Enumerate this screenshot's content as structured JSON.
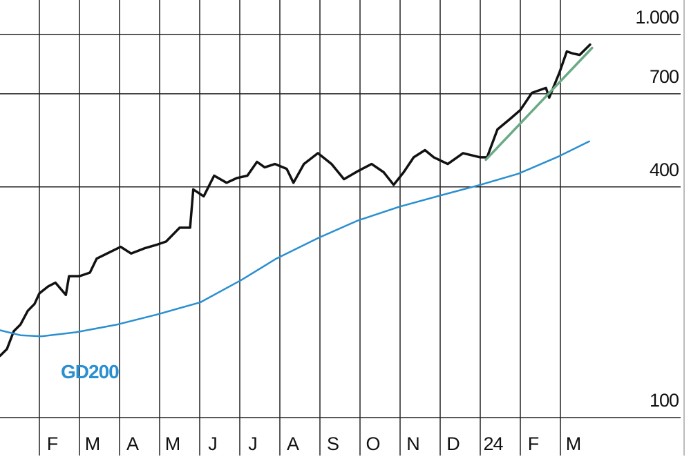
{
  "chart_data": {
    "type": "line",
    "log_scale": true,
    "grid": true,
    "xlim": [
      0,
      17
    ],
    "xticks": [
      {
        "value": 1,
        "label": "F"
      },
      {
        "value": 2,
        "label": "M"
      },
      {
        "value": 3,
        "label": "A"
      },
      {
        "value": 4,
        "label": "M"
      },
      {
        "value": 5,
        "label": "J"
      },
      {
        "value": 6,
        "label": "J"
      },
      {
        "value": 7,
        "label": "A"
      },
      {
        "value": 8,
        "label": "S"
      },
      {
        "value": 9,
        "label": "O"
      },
      {
        "value": 10,
        "label": "N"
      },
      {
        "value": 11,
        "label": "D"
      },
      {
        "value": 12,
        "label": "24"
      },
      {
        "value": 13,
        "label": "F"
      },
      {
        "value": 14,
        "label": "M"
      }
    ],
    "ylim": [
      100,
      1230
    ],
    "yticks": [
      100,
      400,
      700,
      {
        "value": 1000,
        "label": "1.000"
      }
    ],
    "series": [
      {
        "color": "#111111",
        "x": [
          0.02,
          0.19,
          0.36,
          0.53,
          0.71,
          0.88,
          1.0,
          1.22,
          1.4,
          1.66,
          1.74,
          2.0,
          2.26,
          2.43,
          2.78,
          3.03,
          3.29,
          3.64,
          3.9,
          4.16,
          4.5,
          4.76,
          4.84,
          5.1,
          5.36,
          5.67,
          5.93,
          6.19,
          6.43,
          6.62,
          6.88,
          7.17,
          7.34,
          7.6,
          7.95,
          8.29,
          8.6,
          8.95,
          9.29,
          9.59,
          9.84,
          10.09,
          10.34,
          10.62,
          10.84,
          11.19,
          11.57,
          12.0,
          12.17,
          12.43,
          12.76,
          13.0,
          13.29,
          13.64,
          13.72,
          13.98,
          14.16,
          14.31,
          14.48,
          14.74
        ],
        "values": [
          145,
          151,
          168,
          175,
          190,
          198,
          211,
          220,
          225,
          209,
          234,
          234,
          239,
          260,
          271,
          279,
          268,
          277,
          282,
          288,
          313,
          313,
          394,
          378,
          428,
          410,
          422,
          428,
          465,
          450,
          459,
          446,
          410,
          459,
          490,
          459,
          419,
          440,
          459,
          437,
          405,
          437,
          478,
          499,
          478,
          459,
          490,
          478,
          478,
          565,
          604,
          635,
          704,
          725,
          684,
          797,
          903,
          892,
          884,
          941
        ]
      },
      {
        "name": "GD200",
        "color": "#2a8fd0",
        "x": [
          0.02,
          0.53,
          1.05,
          1.91,
          2.95,
          3.95,
          5.02,
          6.05,
          6.91,
          7.95,
          8.95,
          9.98,
          11.05,
          12.0,
          12.95,
          13.95,
          14.72
        ],
        "values": [
          169,
          164,
          163,
          167,
          175,
          186,
          200,
          229,
          260,
          294,
          327,
          355,
          381,
          405,
          433,
          480,
          526
        ]
      },
      {
        "color": "#6aaa84",
        "x": [
          12.14,
          14.79
        ],
        "values": [
          471,
          922
        ]
      }
    ]
  }
}
